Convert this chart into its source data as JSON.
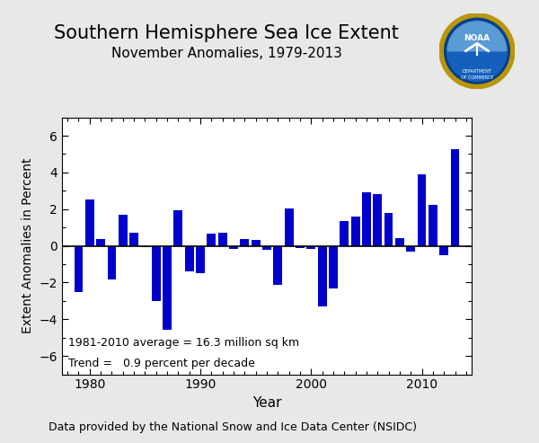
{
  "title1": "Southern Hemisphere Sea Ice Extent",
  "title2": "November Anomalies, 1979-2013",
  "xlabel": "Year",
  "ylabel": "Extent Anomalies in Percent",
  "footer": "Data provided by the National Snow and Ice Data Center (NSIDC)",
  "annotation1": "1981-2010 average = 16.3 million sq km",
  "annotation2": "Trend =   0.9 percent per decade",
  "bar_color": "#0000CC",
  "years": [
    1979,
    1980,
    1981,
    1982,
    1983,
    1984,
    1985,
    1986,
    1987,
    1988,
    1989,
    1990,
    1991,
    1992,
    1993,
    1994,
    1995,
    1996,
    1997,
    1998,
    1999,
    2000,
    2001,
    2002,
    2003,
    2004,
    2005,
    2006,
    2007,
    2008,
    2009,
    2010,
    2011,
    2012,
    2013
  ],
  "values": [
    -2.5,
    2.55,
    0.35,
    -1.85,
    1.7,
    0.7,
    -0.05,
    -3.0,
    -4.55,
    1.95,
    -1.4,
    -1.5,
    0.65,
    0.7,
    -0.15,
    0.35,
    0.3,
    -0.2,
    -2.1,
    2.05,
    -0.1,
    -0.15,
    -3.3,
    -2.3,
    1.35,
    1.6,
    2.9,
    2.8,
    1.8,
    0.4,
    -0.3,
    3.9,
    2.25,
    -0.5,
    5.25
  ],
  "ylim": [
    -7,
    7
  ],
  "yticks": [
    -6,
    -4,
    -2,
    0,
    2,
    4,
    6
  ],
  "xlim": [
    1977.5,
    2014.5
  ],
  "xticks": [
    1980,
    1990,
    2000,
    2010
  ],
  "background_color": "#e8e8e8",
  "plot_bg_color": "#ffffff",
  "title1_fontsize": 15,
  "title2_fontsize": 11,
  "xlabel_fontsize": 11,
  "ylabel_fontsize": 10,
  "tick_labelsize": 10,
  "annot_fontsize": 9,
  "footer_fontsize": 9
}
